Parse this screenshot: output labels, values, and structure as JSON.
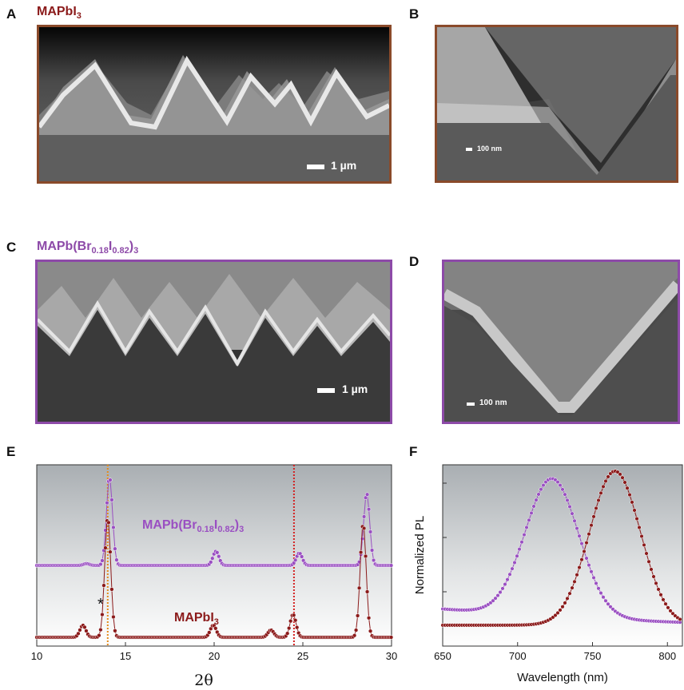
{
  "panels": {
    "A": {
      "letter": "A",
      "title": "MAPbI",
      "title_sub": "3",
      "scale": "1 µm",
      "frame_color": "#8a4a2a"
    },
    "B": {
      "letter": "B",
      "scale": "100 nm",
      "frame_color": "#8a4a2a"
    },
    "C": {
      "letter": "C",
      "title_pre": "MAPb(Br",
      "sub1": "0.18",
      "mid": "I",
      "sub2": "0.82",
      "post": ")",
      "sub3": "3",
      "scale": "1 µm",
      "frame_color": "#8d4aa8"
    },
    "D": {
      "letter": "D",
      "scale": "100 nm",
      "frame_color": "#8d4aa8"
    },
    "E": {
      "letter": "E"
    },
    "F": {
      "letter": "F"
    }
  },
  "colors": {
    "purple": "#9a4fc2",
    "red": "#8b1a1a",
    "orange_line": "#e38a1c",
    "red_line": "#d42020"
  },
  "chart_data": [
    {
      "type": "line",
      "panel": "E",
      "xlabel": "2θ",
      "ylabel": "",
      "xlim": [
        10,
        30
      ],
      "xticks": [
        10,
        15,
        20,
        25,
        30
      ],
      "reference_lines": [
        14.0,
        24.5
      ],
      "annotations": [
        {
          "text": "*",
          "x": 12.6
        }
      ],
      "series": [
        {
          "name": "MAPb(Br0.18I0.82)3",
          "label_pre": "MAPb(Br",
          "sub1": "0.18",
          "mid": "I",
          "sub2": "0.82",
          "post": ")",
          "sub3": "3",
          "peaks": [
            [
              14.1,
              1.0
            ],
            [
              20.1,
              0.16
            ],
            [
              24.8,
              0.14
            ],
            [
              28.6,
              0.82
            ],
            [
              12.8,
              0.02
            ]
          ]
        },
        {
          "name": "MAPbI3",
          "label": "MAPbI",
          "label_sub": "3",
          "peaks": [
            [
              14.0,
              1.0
            ],
            [
              12.6,
              0.1
            ],
            [
              19.95,
              0.1
            ],
            [
              23.2,
              0.06
            ],
            [
              24.45,
              0.19
            ],
            [
              28.4,
              0.95
            ]
          ]
        }
      ]
    },
    {
      "type": "line",
      "panel": "F",
      "xlabel": "Wavelength (nm)",
      "ylabel": "Normalized PL",
      "xlim": [
        650,
        810
      ],
      "xticks": [
        650,
        700,
        750,
        800
      ],
      "series": [
        {
          "name": "MAPb(Br0.18I0.82)3",
          "peak": 723,
          "fwhm": 42,
          "baseline": 0.15
        },
        {
          "name": "MAPbI3",
          "peak": 765,
          "fwhm": 40,
          "baseline": 0.05
        }
      ]
    }
  ]
}
